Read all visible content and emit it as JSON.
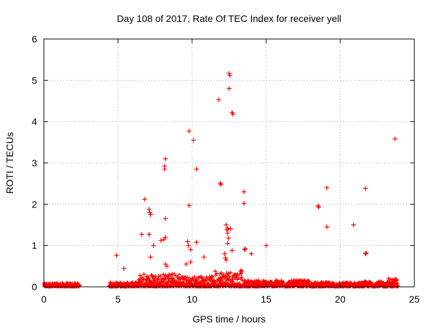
{
  "chart_data": {
    "type": "scatter",
    "title": "Day 108 of 2017, Rate Of TEC Index for receiver yell",
    "xlabel": "GPS time / hours",
    "ylabel": "ROTI / TECUs",
    "xlim": [
      0,
      25
    ],
    "ylim": [
      0,
      6
    ],
    "xticks": [
      0,
      5,
      10,
      15,
      20,
      25
    ],
    "yticks": [
      0,
      1,
      2,
      3,
      4,
      5,
      6
    ],
    "grid": true,
    "marker": "plus",
    "color": "#ff0000",
    "outliers": [
      [
        4.9,
        0.76
      ],
      [
        5.4,
        0.44
      ],
      [
        6.6,
        1.27
      ],
      [
        6.8,
        2.12
      ],
      [
        7.1,
        1.88
      ],
      [
        7.15,
        1.8
      ],
      [
        7.2,
        1.75
      ],
      [
        7.1,
        1.27
      ],
      [
        7.2,
        0.72
      ],
      [
        7.4,
        1.0
      ],
      [
        7.9,
        1.12
      ],
      [
        8.1,
        1.15
      ],
      [
        8.2,
        1.2
      ],
      [
        8.2,
        3.1
      ],
      [
        8.15,
        2.92
      ],
      [
        8.15,
        2.85
      ],
      [
        8.2,
        1.65
      ],
      [
        8.2,
        0.55
      ],
      [
        8.3,
        0.5
      ],
      [
        9.8,
        3.77
      ],
      [
        10.1,
        3.55
      ],
      [
        9.8,
        1.97
      ],
      [
        10.3,
        2.85
      ],
      [
        9.7,
        1.1
      ],
      [
        9.75,
        1.0
      ],
      [
        9.9,
        0.9
      ],
      [
        10.3,
        1.08
      ],
      [
        9.6,
        0.55
      ],
      [
        9.9,
        0.6
      ],
      [
        10.8,
        0.72
      ],
      [
        11.8,
        4.53
      ],
      [
        11.9,
        2.51
      ],
      [
        11.95,
        2.48
      ],
      [
        12.5,
        5.17
      ],
      [
        12.55,
        5.12
      ],
      [
        12.5,
        4.8
      ],
      [
        12.7,
        4.22
      ],
      [
        12.75,
        4.18
      ],
      [
        12.3,
        1.5
      ],
      [
        12.4,
        1.42
      ],
      [
        12.35,
        1.38
      ],
      [
        12.4,
        1.3
      ],
      [
        12.45,
        1.18
      ],
      [
        12.4,
        1.05
      ],
      [
        12.6,
        1.4
      ],
      [
        12.7,
        0.88
      ],
      [
        12.2,
        0.8
      ],
      [
        12.25,
        0.7
      ],
      [
        12.3,
        0.65
      ],
      [
        13.5,
        2.3
      ],
      [
        13.5,
        2.02
      ],
      [
        13.6,
        0.92
      ],
      [
        13.55,
        0.9
      ],
      [
        14.0,
        0.8
      ],
      [
        15.0,
        1.0
      ],
      [
        18.5,
        1.96
      ],
      [
        18.55,
        1.93
      ],
      [
        19.1,
        2.4
      ],
      [
        19.1,
        1.45
      ],
      [
        20.9,
        1.5
      ],
      [
        21.7,
        2.38
      ],
      [
        21.75,
        0.82
      ],
      [
        21.7,
        0.8
      ],
      [
        23.7,
        3.58
      ]
    ],
    "dense_bands": [
      {
        "x": [
          0,
          2.4
        ],
        "y_max": 0.08
      },
      {
        "x": [
          4.4,
          6.4
        ],
        "y_max": 0.1
      },
      {
        "x": [
          6.4,
          9.4
        ],
        "y_max": 0.32
      },
      {
        "x": [
          9.4,
          11.4
        ],
        "y_max": 0.25
      },
      {
        "x": [
          11.4,
          13.4
        ],
        "y_max": 0.4
      },
      {
        "x": [
          13.4,
          18.0
        ],
        "y_max": 0.15
      },
      {
        "x": [
          18.0,
          21.5
        ],
        "y_max": 0.1
      },
      {
        "x": [
          21.5,
          23.2
        ],
        "y_max": 0.12
      },
      {
        "x": [
          23.2,
          23.9
        ],
        "y_max": 0.2
      }
    ]
  }
}
